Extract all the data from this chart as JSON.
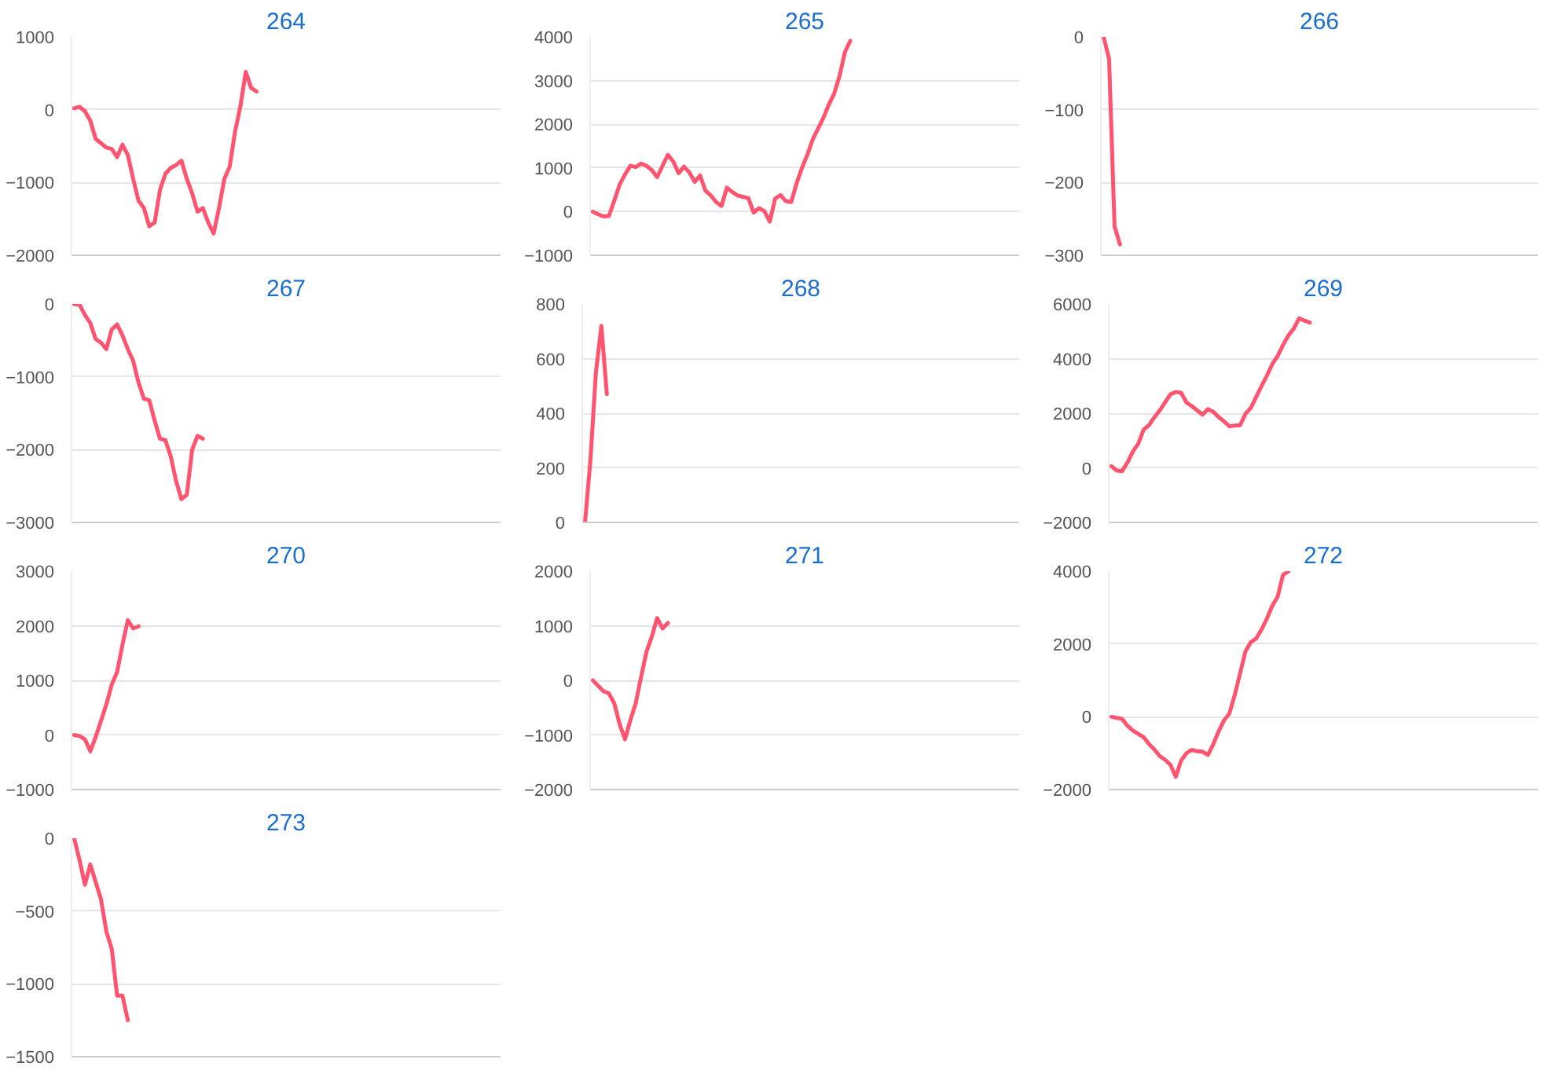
{
  "chart_data": [
    {
      "type": "line",
      "title": "264",
      "color": "#ff5470",
      "grid": "y",
      "tick_labels": "y",
      "ylim": [
        -2000,
        1000
      ],
      "yticks": [
        -2000,
        -1000,
        0,
        1000
      ],
      "categories": [
        null,
        null,
        null,
        null,
        null,
        null,
        null,
        null,
        null,
        null,
        null,
        null,
        null,
        null,
        null,
        null,
        null,
        null,
        null,
        null,
        null,
        null,
        null,
        null,
        null,
        null,
        null,
        null,
        null,
        null,
        null,
        null,
        null,
        null,
        null,
        null,
        null,
        null,
        null,
        null,
        null,
        null,
        null,
        null,
        null,
        null,
        null,
        null,
        null,
        null,
        null,
        null,
        null,
        null,
        null,
        null,
        null,
        null,
        null,
        null,
        null,
        null,
        null,
        null,
        null,
        null,
        null,
        null,
        null,
        null,
        null,
        null,
        null,
        null,
        null,
        null,
        null,
        null,
        null,
        null
      ],
      "values": [
        20,
        40,
        -20,
        -150,
        -400,
        -460,
        -520,
        -540,
        -650,
        -480,
        -620,
        -950,
        -1250,
        -1350,
        -1600,
        -1550,
        -1100,
        -880,
        -800,
        -760,
        -700,
        -950,
        -1150,
        -1400,
        -1350,
        -1550,
        -1700,
        -1350,
        -950,
        -780,
        -300,
        50,
        520,
        300,
        250,
        null,
        null,
        null,
        null,
        null,
        null,
        null,
        null,
        null,
        null,
        null,
        null,
        null,
        null,
        null,
        null,
        null,
        null,
        null,
        null,
        null,
        null,
        null,
        null,
        null,
        null,
        null,
        null,
        null,
        null,
        null,
        null,
        null,
        null,
        null,
        null,
        null,
        null,
        null,
        null,
        null,
        null,
        null,
        null,
        null
      ]
    },
    {
      "type": "line",
      "title": "265",
      "color": "#ff5470",
      "grid": "y",
      "tick_labels": "y",
      "ylim": [
        -1000,
        4000
      ],
      "yticks": [
        -1000,
        0,
        1000,
        2000,
        3000,
        4000
      ],
      "categories": [
        null,
        null,
        null,
        null,
        null,
        null,
        null,
        null,
        null,
        null,
        null,
        null,
        null,
        null,
        null,
        null,
        null,
        null,
        null,
        null,
        null,
        null,
        null,
        null,
        null,
        null,
        null,
        null,
        null,
        null,
        null,
        null,
        null,
        null,
        null,
        null,
        null,
        null,
        null,
        null,
        null,
        null,
        null,
        null,
        null,
        null,
        null,
        null,
        null,
        null,
        null,
        null,
        null,
        null,
        null,
        null,
        null,
        null,
        null,
        null,
        null,
        null,
        null,
        null,
        null,
        null,
        null,
        null,
        null,
        null,
        null,
        null,
        null,
        null,
        null,
        null,
        null,
        null,
        null,
        null
      ],
      "values": [
        0,
        -60,
        -110,
        -100,
        250,
        620,
        850,
        1050,
        1020,
        1100,
        1050,
        950,
        790,
        1050,
        1300,
        1150,
        880,
        1030,
        900,
        680,
        830,
        480,
        370,
        220,
        130,
        550,
        450,
        370,
        340,
        310,
        -20,
        80,
        10,
        -230,
        300,
        380,
        240,
        220,
        650,
        1000,
        1300,
        1650,
        1900,
        2150,
        2450,
        2700,
        3100,
        3650,
        3910,
        null,
        null,
        null,
        null,
        null,
        null,
        null,
        null,
        null,
        null,
        null,
        null,
        null,
        null,
        null,
        null,
        null,
        null,
        null,
        null,
        null,
        null,
        null,
        null,
        null,
        null,
        null,
        null,
        null,
        null,
        null
      ]
    },
    {
      "type": "line",
      "title": "266",
      "color": "#ff5470",
      "grid": "y",
      "tick_labels": "y",
      "ylim": [
        -300,
        0
      ],
      "yticks": [
        -300,
        -200,
        -100,
        0
      ],
      "categories": [
        null,
        null,
        null,
        null,
        null,
        null,
        null,
        null,
        null,
        null,
        null,
        null,
        null,
        null,
        null,
        null,
        null,
        null,
        null,
        null,
        null,
        null,
        null,
        null,
        null,
        null,
        null,
        null,
        null,
        null,
        null,
        null,
        null,
        null,
        null,
        null,
        null,
        null,
        null,
        null,
        null,
        null,
        null,
        null,
        null,
        null,
        null,
        null,
        null,
        null,
        null,
        null,
        null,
        null,
        null,
        null,
        null,
        null,
        null,
        null,
        null,
        null,
        null,
        null,
        null,
        null,
        null,
        null,
        null,
        null,
        null,
        null,
        null,
        null,
        null,
        null,
        null,
        null,
        null,
        null
      ],
      "values": [
        0,
        -30,
        -260,
        -285,
        null,
        null,
        null,
        null,
        null,
        null,
        null,
        null,
        null,
        null,
        null,
        null,
        null,
        null,
        null,
        null,
        null,
        null,
        null,
        null,
        null,
        null,
        null,
        null,
        null,
        null,
        null,
        null,
        null,
        null,
        null,
        null,
        null,
        null,
        null,
        null,
        null,
        null,
        null,
        null,
        null,
        null,
        null,
        null,
        null,
        null,
        null,
        null,
        null,
        null,
        null,
        null,
        null,
        null,
        null,
        null,
        null,
        null,
        null,
        null,
        null,
        null,
        null,
        null,
        null,
        null,
        null,
        null,
        null,
        null,
        null,
        null,
        null,
        null,
        null,
        null
      ]
    },
    {
      "type": "line",
      "title": "267",
      "color": "#ff5470",
      "grid": "y",
      "tick_labels": "y",
      "ylim": [
        -3000,
        0
      ],
      "yticks": [
        -3000,
        -2000,
        -1000,
        0
      ],
      "categories": [
        null,
        null,
        null,
        null,
        null,
        null,
        null,
        null,
        null,
        null,
        null,
        null,
        null,
        null,
        null,
        null,
        null,
        null,
        null,
        null,
        null,
        null,
        null,
        null,
        null,
        null,
        null,
        null,
        null,
        null,
        null,
        null,
        null,
        null,
        null,
        null,
        null,
        null,
        null,
        null,
        null,
        null,
        null,
        null,
        null,
        null,
        null,
        null,
        null,
        null,
        null,
        null,
        null,
        null,
        null,
        null,
        null,
        null,
        null,
        null,
        null,
        null,
        null,
        null,
        null,
        null,
        null,
        null,
        null,
        null,
        null,
        null,
        null,
        null,
        null,
        null,
        null,
        null,
        null,
        null
      ],
      "values": [
        0,
        -10,
        -150,
        -260,
        -480,
        -530,
        -620,
        -350,
        -280,
        -430,
        -620,
        -780,
        -1080,
        -1300,
        -1320,
        -1600,
        -1850,
        -1870,
        -2090,
        -2430,
        -2680,
        -2620,
        -2000,
        -1810,
        -1850,
        null,
        null,
        null,
        null,
        null,
        null,
        null,
        null,
        null,
        null,
        null,
        null,
        null,
        null,
        null,
        null,
        null,
        null,
        null,
        null,
        null,
        null,
        null,
        null,
        null,
        null,
        null,
        null,
        null,
        null,
        null,
        null,
        null,
        null,
        null,
        null,
        null,
        null,
        null,
        null,
        null,
        null,
        null,
        null,
        null,
        null,
        null,
        null,
        null,
        null,
        null,
        null,
        null,
        null,
        null
      ]
    },
    {
      "type": "line",
      "title": "268",
      "color": "#ff5470",
      "grid": "y",
      "tick_labels": "y",
      "ylim": [
        0,
        800
      ],
      "yticks": [
        0,
        200,
        400,
        600,
        800
      ],
      "categories": [
        null,
        null,
        null,
        null,
        null,
        null,
        null,
        null,
        null,
        null,
        null,
        null,
        null,
        null,
        null,
        null,
        null,
        null,
        null,
        null,
        null,
        null,
        null,
        null,
        null,
        null,
        null,
        null,
        null,
        null,
        null,
        null,
        null,
        null,
        null,
        null,
        null,
        null,
        null,
        null,
        null,
        null,
        null,
        null,
        null,
        null,
        null,
        null,
        null,
        null,
        null,
        null,
        null,
        null,
        null,
        null,
        null,
        null,
        null,
        null,
        null,
        null,
        null,
        null,
        null,
        null,
        null,
        null,
        null,
        null,
        null,
        null,
        null,
        null,
        null,
        null,
        null,
        null,
        null,
        null
      ],
      "values": [
        0,
        230,
        550,
        720,
        470,
        null,
        null,
        null,
        null,
        null,
        null,
        null,
        null,
        null,
        null,
        null,
        null,
        null,
        null,
        null,
        null,
        null,
        null,
        null,
        null,
        null,
        null,
        null,
        null,
        null,
        null,
        null,
        null,
        null,
        null,
        null,
        null,
        null,
        null,
        null,
        null,
        null,
        null,
        null,
        null,
        null,
        null,
        null,
        null,
        null,
        null,
        null,
        null,
        null,
        null,
        null,
        null,
        null,
        null,
        null,
        null,
        null,
        null,
        null,
        null,
        null,
        null,
        null,
        null,
        null,
        null,
        null,
        null,
        null,
        null,
        null,
        null,
        null,
        null,
        null
      ]
    },
    {
      "type": "line",
      "title": "269",
      "color": "#ff5470",
      "grid": "y",
      "tick_labels": "y",
      "ylim": [
        -2000,
        6000
      ],
      "yticks": [
        -2000,
        0,
        2000,
        4000,
        6000
      ],
      "categories": [
        null,
        null,
        null,
        null,
        null,
        null,
        null,
        null,
        null,
        null,
        null,
        null,
        null,
        null,
        null,
        null,
        null,
        null,
        null,
        null,
        null,
        null,
        null,
        null,
        null,
        null,
        null,
        null,
        null,
        null,
        null,
        null,
        null,
        null,
        null,
        null,
        null,
        null,
        null,
        null,
        null,
        null,
        null,
        null,
        null,
        null,
        null,
        null,
        null,
        null,
        null,
        null,
        null,
        null,
        null,
        null,
        null,
        null,
        null,
        null,
        null,
        null,
        null,
        null,
        null,
        null,
        null,
        null,
        null,
        null,
        null,
        null,
        null,
        null,
        null,
        null,
        null,
        null,
        null,
        null
      ],
      "values": [
        60,
        -100,
        -120,
        200,
        600,
        880,
        1400,
        1560,
        1850,
        2100,
        2400,
        2690,
        2780,
        2750,
        2390,
        2260,
        2100,
        1950,
        2150,
        2050,
        1860,
        1700,
        1520,
        1550,
        1560,
        1980,
        2200,
        2600,
        3000,
        3380,
        3800,
        4100,
        4500,
        4850,
        5100,
        5480,
        5390,
        5320,
        null,
        null,
        null,
        null,
        null,
        null,
        null,
        null,
        null,
        null,
        null,
        null,
        null,
        null,
        null,
        null,
        null,
        null,
        null,
        null,
        null,
        null,
        null,
        null,
        null,
        null,
        null,
        null,
        null,
        null,
        null,
        null,
        null,
        null,
        null,
        null,
        null,
        null,
        null,
        null,
        null,
        null
      ]
    },
    {
      "type": "line",
      "title": "270",
      "color": "#ff5470",
      "grid": "y",
      "tick_labels": "y",
      "ylim": [
        -1000,
        3000
      ],
      "yticks": [
        -1000,
        0,
        1000,
        2000,
        3000
      ],
      "categories": [
        null,
        null,
        null,
        null,
        null,
        null,
        null,
        null,
        null,
        null,
        null,
        null,
        null,
        null,
        null,
        null,
        null,
        null,
        null,
        null,
        null,
        null,
        null,
        null,
        null,
        null,
        null,
        null,
        null,
        null,
        null,
        null,
        null,
        null,
        null,
        null,
        null,
        null,
        null,
        null,
        null,
        null,
        null,
        null,
        null,
        null,
        null,
        null,
        null,
        null,
        null,
        null,
        null,
        null,
        null,
        null,
        null,
        null,
        null,
        null,
        null,
        null,
        null,
        null,
        null,
        null,
        null,
        null,
        null,
        null,
        null,
        null,
        null,
        null,
        null,
        null,
        null,
        null,
        null,
        null
      ],
      "values": [
        0,
        -20,
        -80,
        -300,
        -40,
        260,
        560,
        920,
        1150,
        1650,
        2100,
        1950,
        1990,
        null,
        null,
        null,
        null,
        null,
        null,
        null,
        null,
        null,
        null,
        null,
        null,
        null,
        null,
        null,
        null,
        null,
        null,
        null,
        null,
        null,
        null,
        null,
        null,
        null,
        null,
        null,
        null,
        null,
        null,
        null,
        null,
        null,
        null,
        null,
        null,
        null,
        null,
        null,
        null,
        null,
        null,
        null,
        null,
        null,
        null,
        null,
        null,
        null,
        null,
        null,
        null,
        null,
        null,
        null,
        null,
        null,
        null,
        null,
        null,
        null,
        null,
        null,
        null,
        null,
        null,
        null
      ]
    },
    {
      "type": "line",
      "title": "271",
      "color": "#ff5470",
      "grid": "y",
      "tick_labels": "y",
      "ylim": [
        -2000,
        2000
      ],
      "yticks": [
        -2000,
        -1000,
        0,
        1000,
        2000
      ],
      "categories": [
        null,
        null,
        null,
        null,
        null,
        null,
        null,
        null,
        null,
        null,
        null,
        null,
        null,
        null,
        null,
        null,
        null,
        null,
        null,
        null,
        null,
        null,
        null,
        null,
        null,
        null,
        null,
        null,
        null,
        null,
        null,
        null,
        null,
        null,
        null,
        null,
        null,
        null,
        null,
        null,
        null,
        null,
        null,
        null,
        null,
        null,
        null,
        null,
        null,
        null,
        null,
        null,
        null,
        null,
        null,
        null,
        null,
        null,
        null,
        null,
        null,
        null,
        null,
        null,
        null,
        null,
        null,
        null,
        null,
        null,
        null,
        null,
        null,
        null,
        null,
        null,
        null,
        null,
        null,
        null
      ],
      "values": [
        0,
        -100,
        -200,
        -240,
        -420,
        -800,
        -1080,
        -730,
        -420,
        60,
        520,
        800,
        1140,
        950,
        1050,
        null,
        null,
        null,
        null,
        null,
        null,
        null,
        null,
        null,
        null,
        null,
        null,
        null,
        null,
        null,
        null,
        null,
        null,
        null,
        null,
        null,
        null,
        null,
        null,
        null,
        null,
        null,
        null,
        null,
        null,
        null,
        null,
        null,
        null,
        null,
        null,
        null,
        null,
        null,
        null,
        null,
        null,
        null,
        null,
        null,
        null,
        null,
        null,
        null,
        null,
        null,
        null,
        null,
        null,
        null,
        null,
        null,
        null,
        null,
        null,
        null,
        null,
        null,
        null,
        null
      ]
    },
    {
      "type": "line",
      "title": "272",
      "color": "#ff5470",
      "grid": "y",
      "tick_labels": "y",
      "ylim": [
        -2000,
        4000
      ],
      "yticks": [
        -2000,
        0,
        2000,
        4000
      ],
      "categories": [
        null,
        null,
        null,
        null,
        null,
        null,
        null,
        null,
        null,
        null,
        null,
        null,
        null,
        null,
        null,
        null,
        null,
        null,
        null,
        null,
        null,
        null,
        null,
        null,
        null,
        null,
        null,
        null,
        null,
        null,
        null,
        null,
        null,
        null,
        null,
        null,
        null,
        null,
        null,
        null,
        null,
        null,
        null,
        null,
        null,
        null,
        null,
        null,
        null,
        null,
        null,
        null,
        null,
        null,
        null,
        null,
        null,
        null,
        null,
        null,
        null,
        null,
        null,
        null,
        null,
        null,
        null,
        null,
        null,
        null,
        null,
        null,
        null,
        null,
        null,
        null,
        null,
        null,
        null,
        null
      ],
      "values": [
        0,
        -30,
        -60,
        -250,
        -380,
        -470,
        -560,
        -750,
        -900,
        -1080,
        -1180,
        -1320,
        -1650,
        -1200,
        -1000,
        -910,
        -950,
        -960,
        -1050,
        -750,
        -400,
        -100,
        90,
        600,
        1200,
        1800,
        2050,
        2150,
        2400,
        2700,
        3050,
        3300,
        3900,
        3990,
        null,
        null,
        null,
        null,
        null,
        null,
        null,
        null,
        null,
        null,
        null,
        null,
        null,
        null,
        null,
        null,
        null,
        null,
        null,
        null,
        null,
        null,
        null,
        null,
        null,
        null,
        null,
        null,
        null,
        null,
        null,
        null,
        null,
        null,
        null,
        null,
        null,
        null,
        null,
        null,
        null,
        null,
        null,
        null,
        null,
        null
      ]
    },
    {
      "type": "line",
      "title": "273",
      "color": "#ff5470",
      "grid": "y",
      "tick_labels": "y",
      "ylim": [
        -1500,
        0
      ],
      "yticks": [
        -1500,
        -1000,
        -500,
        0
      ],
      "categories": [
        null,
        null,
        null,
        null,
        null,
        null,
        null,
        null,
        null,
        null,
        null,
        null,
        null,
        null,
        null,
        null,
        null,
        null,
        null,
        null,
        null,
        null,
        null,
        null,
        null,
        null,
        null,
        null,
        null,
        null,
        null,
        null,
        null,
        null,
        null,
        null,
        null,
        null,
        null,
        null,
        null,
        null,
        null,
        null,
        null,
        null,
        null,
        null,
        null,
        null,
        null,
        null,
        null,
        null,
        null,
        null,
        null,
        null,
        null,
        null,
        null,
        null,
        null,
        null,
        null,
        null,
        null,
        null,
        null,
        null,
        null,
        null,
        null,
        null,
        null,
        null,
        null,
        null,
        null,
        null
      ],
      "values": [
        0,
        -150,
        -320,
        -180,
        -300,
        -420,
        -640,
        -760,
        -1080,
        -1080,
        -1250,
        null,
        null,
        null,
        null,
        null,
        null,
        null,
        null,
        null,
        null,
        null,
        null,
        null,
        null,
        null,
        null,
        null,
        null,
        null,
        null,
        null,
        null,
        null,
        null,
        null,
        null,
        null,
        null,
        null,
        null,
        null,
        null,
        null,
        null,
        null,
        null,
        null,
        null,
        null,
        null,
        null,
        null,
        null,
        null,
        null,
        null,
        null,
        null,
        null,
        null,
        null,
        null,
        null,
        null,
        null,
        null,
        null,
        null,
        null,
        null,
        null,
        null,
        null,
        null,
        null,
        null,
        null,
        null,
        null
      ]
    }
  ]
}
